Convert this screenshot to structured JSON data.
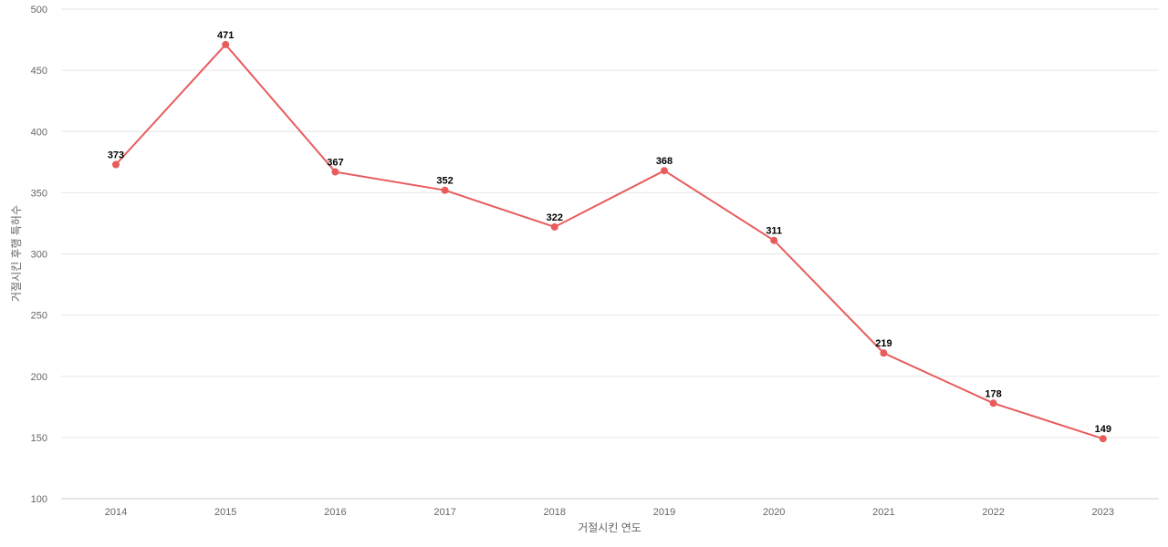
{
  "chart_data": {
    "type": "line",
    "title": "",
    "xlabel": "거절시킨 연도",
    "ylabel": "거절시킨 후행 특허수",
    "categories": [
      "2014",
      "2015",
      "2016",
      "2017",
      "2018",
      "2019",
      "2020",
      "2021",
      "2022",
      "2023"
    ],
    "series": [
      {
        "values": [
          373,
          471,
          367,
          352,
          322,
          368,
          311,
          219,
          178,
          149
        ],
        "color": "#e85c5c"
      }
    ],
    "ylim": [
      100,
      500
    ],
    "yticks": [
      100,
      150,
      200,
      250,
      300,
      350,
      400,
      450,
      500
    ],
    "grid": true,
    "legend": "none",
    "data_labels": true
  }
}
